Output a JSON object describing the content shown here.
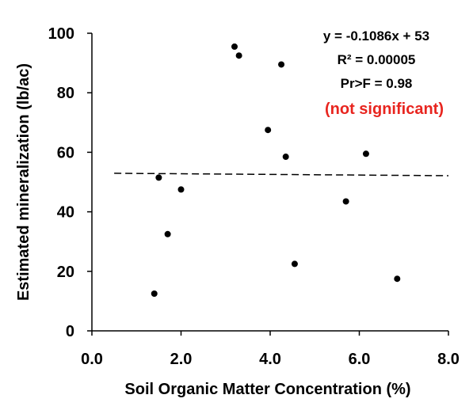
{
  "chart_data": {
    "type": "scatter",
    "title": "",
    "xlabel": "Soil Organic Matter Concentration (%)",
    "ylabel": "Estimated mineralization (lb/ac)",
    "xlim": [
      0,
      8
    ],
    "ylim": [
      0,
      100
    ],
    "x_ticks": [
      "0.0",
      "2.0",
      "4.0",
      "6.0",
      "8.0"
    ],
    "y_ticks": [
      "0",
      "20",
      "40",
      "60",
      "80",
      "100"
    ],
    "grid": false,
    "points": [
      {
        "x": 1.4,
        "y": 12.5
      },
      {
        "x": 1.5,
        "y": 51.5
      },
      {
        "x": 1.7,
        "y": 32.5
      },
      {
        "x": 2.0,
        "y": 47.5
      },
      {
        "x": 3.2,
        "y": 95.5
      },
      {
        "x": 3.3,
        "y": 92.5
      },
      {
        "x": 3.95,
        "y": 67.5
      },
      {
        "x": 4.25,
        "y": 89.5
      },
      {
        "x": 4.35,
        "y": 58.5
      },
      {
        "x": 4.55,
        "y": 22.5
      },
      {
        "x": 5.7,
        "y": 43.5
      },
      {
        "x": 6.15,
        "y": 59.5
      },
      {
        "x": 6.85,
        "y": 17.5
      }
    ],
    "trendline": {
      "style": "dashed",
      "slope": -0.1086,
      "intercept": 53,
      "x_range": [
        0.5,
        8
      ]
    },
    "annotations": {
      "equation": "y = -0.1086x  + 53",
      "r2": "R² = 0.00005",
      "prf": "Pr>F = 0.98",
      "significance": "(not significant)"
    },
    "colors": {
      "points": "#000000",
      "significance": "#e8251f"
    }
  }
}
